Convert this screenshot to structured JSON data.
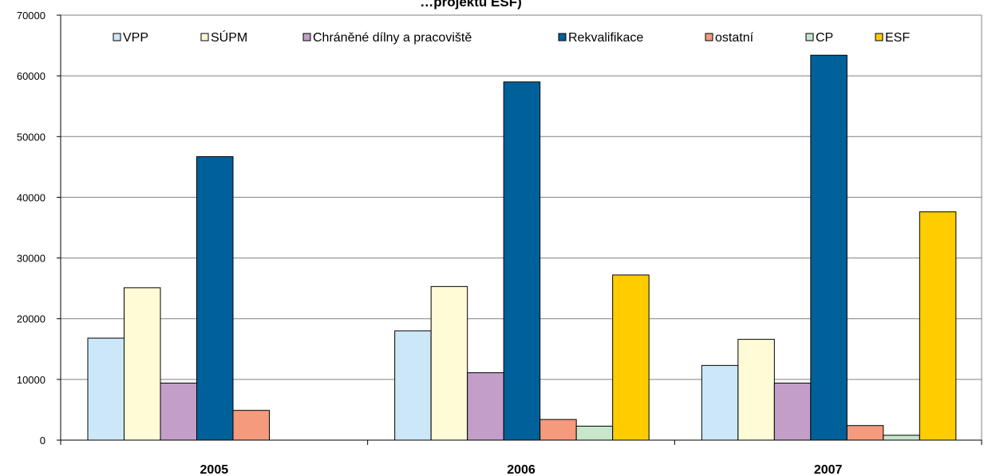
{
  "chart_data": {
    "type": "bar",
    "title": "…projektů ESF)",
    "xlabel": "",
    "ylabel": "",
    "categories": [
      "2005",
      "2006",
      "2007"
    ],
    "ylim": [
      0,
      70000
    ],
    "yticks": [
      0,
      10000,
      20000,
      30000,
      40000,
      50000,
      60000,
      70000
    ],
    "grid": true,
    "legend_position": "top",
    "series": [
      {
        "name": "VPP",
        "color": "#cce8f8",
        "values": [
          16800,
          18000,
          12300
        ]
      },
      {
        "name": "SÚPM",
        "color": "#fffbd6",
        "values": [
          25100,
          25300,
          16600
        ]
      },
      {
        "name": "Chráněné dílny a pracoviště",
        "color": "#c39ec9",
        "values": [
          9400,
          11100,
          9400
        ]
      },
      {
        "name": "Rekvalifikace",
        "color": "#00619a",
        "values": [
          46700,
          59000,
          63400
        ]
      },
      {
        "name": "ostatní",
        "color": "#f59a7c",
        "values": [
          4900,
          3400,
          2400
        ]
      },
      {
        "name": "CP",
        "color": "#c7e6cc",
        "values": [
          0,
          2300,
          800
        ]
      },
      {
        "name": "ESF",
        "color": "#ffcc00",
        "values": [
          0,
          27200,
          37600
        ]
      }
    ]
  }
}
